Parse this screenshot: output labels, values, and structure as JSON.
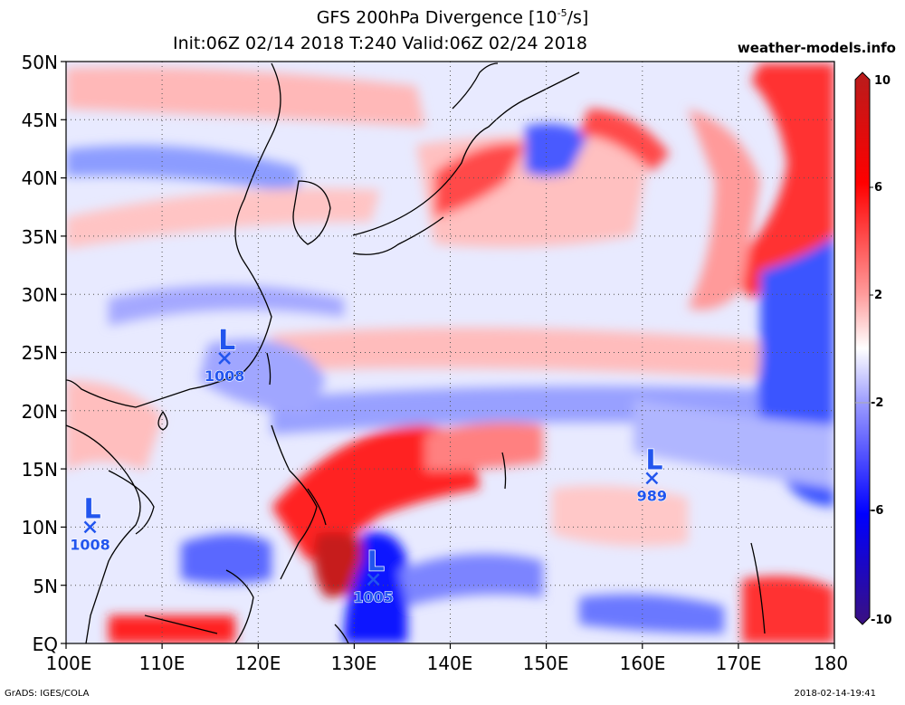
{
  "header": {
    "title_main": "GFS 200hPa Divergence [10",
    "title_sup": "-5",
    "title_end": "/s]",
    "title_line2": "Init:06Z 02/14 2018 T:240 Valid:06Z 02/24 2018",
    "site": "weather-models.info"
  },
  "footer": {
    "left": "GrADS: IGES/COLA",
    "right": "2018-02-14-19:41"
  },
  "map": {
    "lat_labels": [
      "50N",
      "45N",
      "40N",
      "35N",
      "30N",
      "25N",
      "20N",
      "15N",
      "10N",
      "5N",
      "EQ"
    ],
    "lon_labels": [
      "100E",
      "110E",
      "120E",
      "130E",
      "140E",
      "150E",
      "160E",
      "170E",
      "180"
    ],
    "lat_range": [
      0,
      50
    ],
    "lon_range": [
      100,
      180
    ],
    "lows": [
      {
        "label": "L",
        "pressure": "1008",
        "lon": 116.5,
        "lat": 24.5
      },
      {
        "label": "L",
        "pressure": "1008",
        "lon": 102.5,
        "lat": 10.0
      },
      {
        "label": "L",
        "pressure": "1005",
        "lon": 132.0,
        "lat": 5.5
      },
      {
        "label": "L",
        "pressure": "989",
        "lon": 161.0,
        "lat": 14.2
      }
    ],
    "low_color": "#2255ee"
  },
  "colorbar": {
    "labels": [
      "10",
      "6",
      "2",
      "-2",
      "-6",
      "-10"
    ],
    "colors": [
      "#b81c1c",
      "#ff0000",
      "#ff9090",
      "#ffffff",
      "#8c8cff",
      "#0000ff",
      "#3a1080"
    ]
  }
}
